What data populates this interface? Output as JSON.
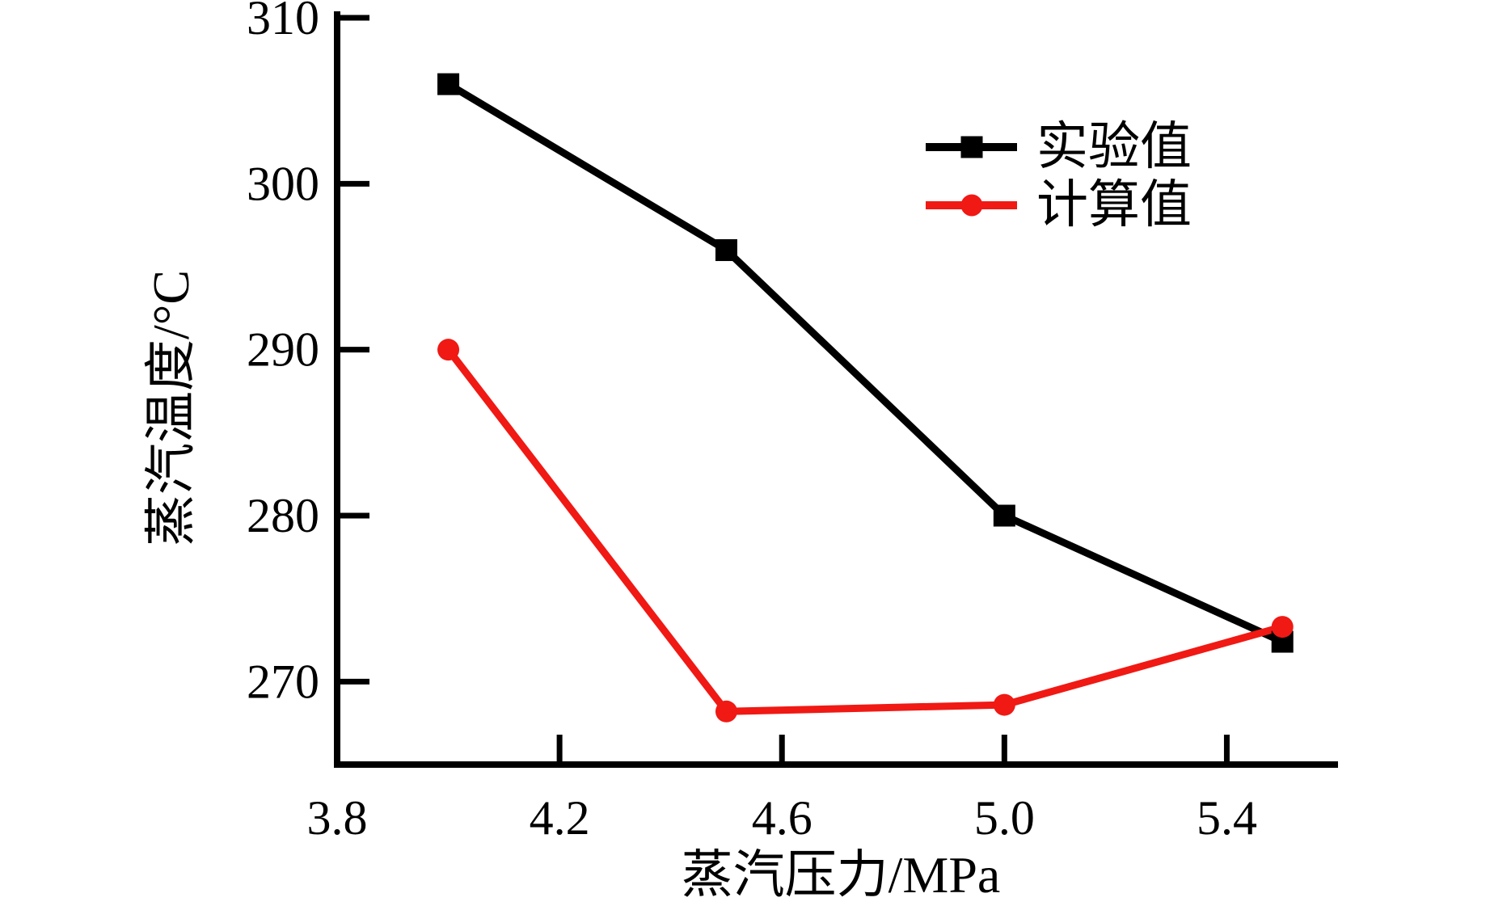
{
  "figure": {
    "background": "#ffffff",
    "text_color": "#000000"
  },
  "chart_data": {
    "type": "line",
    "title": "",
    "xlabel": "蒸汽压力/MPa",
    "ylabel": "蒸汽温度/°C",
    "xlim": [
      3.8,
      5.6
    ],
    "ylim": [
      265,
      310
    ],
    "x_ticks": [
      3.8,
      4.2,
      4.6,
      5.0,
      5.4
    ],
    "x_tick_labels": [
      "3.8",
      "4.2",
      "4.6",
      "5.0",
      "5.4"
    ],
    "y_ticks": [
      270,
      280,
      290,
      300,
      310
    ],
    "y_tick_labels": [
      "270",
      "280",
      "290",
      "300",
      "310"
    ],
    "grid": false,
    "legend_position": "upper-right-inside",
    "x": [
      4.0,
      4.5,
      5.0,
      5.5
    ],
    "series": [
      {
        "name": "实验值",
        "color": "#000000",
        "marker": "square",
        "values": [
          306,
          296,
          280,
          272.4
        ]
      },
      {
        "name": "计算值",
        "color": "#f01914",
        "marker": "circle",
        "values": [
          290,
          268.2,
          268.6,
          273.3
        ]
      }
    ]
  }
}
